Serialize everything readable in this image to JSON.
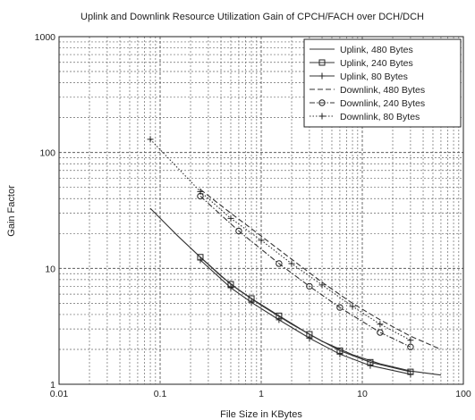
{
  "chart_data": {
    "type": "line",
    "title": "Uplink and Downlink Resource Utilization Gain of CPCH/FACH over DCH/DCH",
    "xlabel": "File Size in KBytes",
    "ylabel": "Gain Factor",
    "xscale": "log",
    "yscale": "log",
    "xlim": [
      0.01,
      100
    ],
    "ylim": [
      1,
      1000
    ],
    "xticks": [
      0.01,
      0.1,
      1,
      10,
      100
    ],
    "xtick_labels": [
      "0.01",
      "0.1",
      "1",
      "10",
      "100"
    ],
    "yticks": [
      1,
      10,
      100,
      1000
    ],
    "ytick_labels": [
      "1",
      "10",
      "100",
      "1000"
    ],
    "grid": true,
    "legend_position": "top-right",
    "series": [
      {
        "name": "Uplink, 480 Bytes",
        "line": "solid",
        "marker": "none",
        "x": [
          0.08,
          0.15,
          0.25,
          0.4,
          0.6,
          1,
          2,
          4,
          8,
          15,
          30,
          60
        ],
        "y": [
          33,
          19,
          12.5,
          8.6,
          6.5,
          4.8,
          3.3,
          2.35,
          1.8,
          1.5,
          1.3,
          1.2
        ]
      },
      {
        "name": "Uplink, 240 Bytes",
        "line": "solid",
        "marker": "square",
        "x": [
          0.25,
          0.5,
          0.8,
          1.5,
          3,
          6,
          12,
          30
        ],
        "y": [
          12.5,
          7.3,
          5.5,
          3.9,
          2.7,
          1.95,
          1.55,
          1.28
        ]
      },
      {
        "name": "Uplink, 80 Bytes",
        "line": "solid",
        "marker": "plus",
        "x": [
          0.25,
          0.5,
          0.8,
          1.5,
          3,
          6,
          12,
          30
        ],
        "y": [
          11.8,
          6.8,
          5.1,
          3.6,
          2.5,
          1.82,
          1.45,
          1.22
        ]
      },
      {
        "name": "Downlink, 480 Bytes",
        "line": "dashed",
        "marker": "none",
        "x": [
          0.25,
          0.5,
          1,
          2,
          4,
          8,
          15,
          30,
          60
        ],
        "y": [
          48,
          30,
          19,
          12,
          7.6,
          5,
          3.6,
          2.6,
          2.0
        ]
      },
      {
        "name": "Downlink, 240 Bytes",
        "line": "dash-dot",
        "marker": "circle",
        "x": [
          0.25,
          0.6,
          1.5,
          3,
          6,
          15,
          30
        ],
        "y": [
          42,
          21,
          11,
          7,
          4.6,
          2.8,
          2.1
        ]
      },
      {
        "name": "Downlink, 80 Bytes",
        "line": "dotted",
        "marker": "plus",
        "x": [
          0.08,
          0.25,
          0.5,
          1,
          2,
          4,
          8,
          15,
          30
        ],
        "y": [
          130,
          46,
          27,
          17.5,
          11,
          7.2,
          4.7,
          3.3,
          2.4
        ]
      }
    ]
  }
}
